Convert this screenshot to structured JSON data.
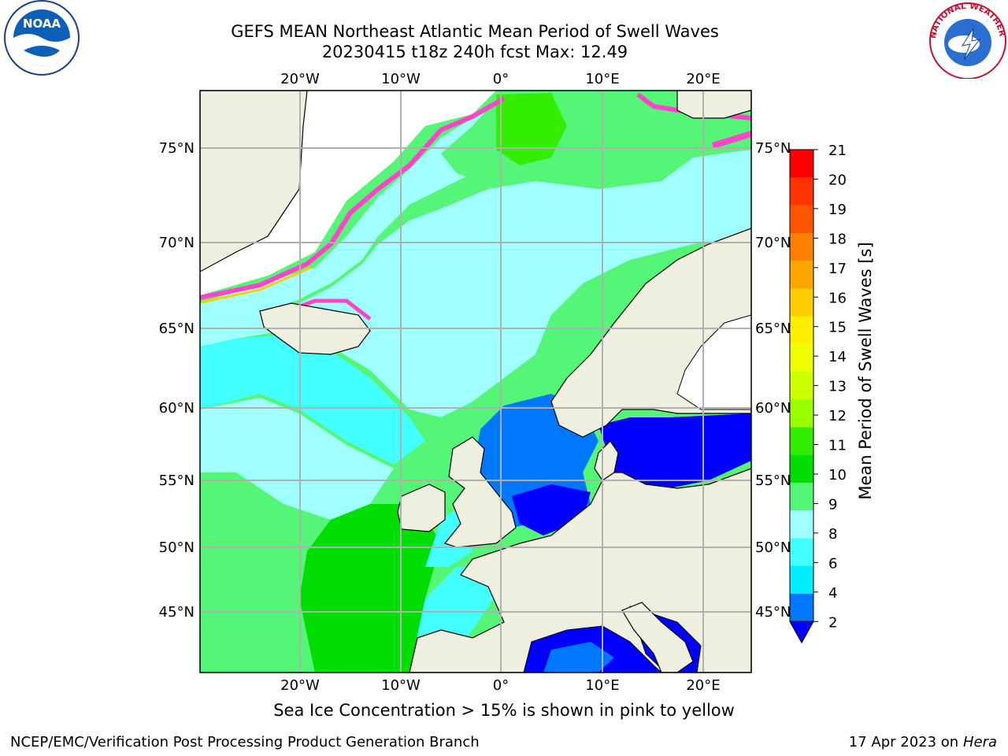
{
  "title": {
    "line1": "GEFS MEAN Northeast Atlantic Mean Period of Swell Waves",
    "line2": "20230415 t18z 240h fcst   Max: 12.49"
  },
  "map": {
    "top_labels": [
      "20°W",
      "10°W",
      "0°",
      "10°E",
      "20°E"
    ],
    "bottom_labels": [
      "20°W",
      "10°W",
      "0°",
      "10°E",
      "20°E"
    ],
    "left_labels": [
      "75°N",
      "70°N",
      "65°N",
      "60°N",
      "55°N",
      "50°N",
      "45°N"
    ],
    "right_labels": [
      "75°N",
      "70°N",
      "65°N",
      "60°N",
      "55°N",
      "50°N",
      "45°N"
    ],
    "land_color": "#efefdf",
    "grid_color": "#b0b0b0"
  },
  "colorbar": {
    "label": "Mean Period of Swell Waves [s]",
    "ticks": [
      "21",
      "20",
      "19",
      "18",
      "17",
      "16",
      "15",
      "14",
      "13",
      "12",
      "11",
      "10",
      "9",
      "8",
      "6",
      "4",
      "2"
    ],
    "colors": [
      "#ff0000",
      "#ff3300",
      "#ff5500",
      "#ff7f00",
      "#ffa500",
      "#ffcc00",
      "#ffee00",
      "#eeff00",
      "#ccff00",
      "#99ff00",
      "#33ee00",
      "#00dd00",
      "#55f577",
      "#a0ffff",
      "#44ffff",
      "#00eeff",
      "#0077ff"
    ],
    "extend_color": "#0000ff"
  },
  "note": "Sea Ice Concentration > 15% is shown in pink to yellow",
  "footer": {
    "left": "NCEP/EMC/Verification Post Processing Product Generation Branch",
    "right_text": "17 Apr 2023 on ",
    "right_italic": "Hera"
  },
  "logos": {
    "noaa_text": "NOAA",
    "nws_text": "NATIONAL WEATHER SERVICE"
  }
}
